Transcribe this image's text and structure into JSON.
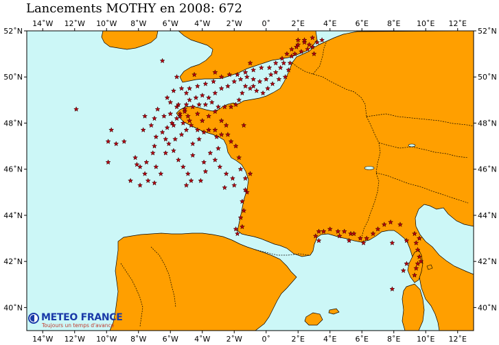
{
  "title": "Lancements MOTHY en 2008: 672",
  "colors": {
    "sea": "#ccf7f7",
    "land": "#ff9f00",
    "marker": "#b50010",
    "marker_edge": "#2a0000",
    "border": "#000000"
  },
  "map": {
    "lon_range": [
      -15,
      13
    ],
    "lat_range": [
      39,
      52
    ],
    "lon_ticks": [
      -14,
      -12,
      -10,
      -8,
      -6,
      -4,
      -2,
      0,
      2,
      4,
      6,
      8,
      10,
      12
    ],
    "lat_ticks": [
      52,
      50,
      48,
      46,
      44,
      42,
      40
    ],
    "lon_labels": [
      "14˚W",
      "12˚W",
      "10˚W",
      "8˚W",
      "6˚W",
      "4˚W",
      "2˚W",
      "0˚",
      "2˚E",
      "4˚E",
      "6˚E",
      "8˚E",
      "10˚E",
      "12˚E"
    ],
    "lat_labels": [
      "52˚N",
      "50˚N",
      "48˚N",
      "46˚N",
      "44˚N",
      "42˚N",
      "40˚N"
    ]
  },
  "logo": {
    "name": "METEO FRANCE",
    "slogan": "Toujours un temps d'avance",
    "icon": "meteo-france-logo-icon"
  },
  "launches": [
    [
      -11.9,
      48.6
    ],
    [
      -9.7,
      47.7
    ],
    [
      -9.4,
      47.1
    ],
    [
      -9.9,
      47.2
    ],
    [
      -9.9,
      46.3
    ],
    [
      -8.9,
      47.2
    ],
    [
      -8.2,
      46.5
    ],
    [
      -8.1,
      46.2
    ],
    [
      -7.9,
      46.1
    ],
    [
      -8.5,
      45.5
    ],
    [
      -7.6,
      45.8
    ],
    [
      -7.5,
      46.3
    ],
    [
      -7.1,
      46.7
    ],
    [
      -7.0,
      47.0
    ],
    [
      -7.4,
      45.5
    ],
    [
      -7.9,
      45.3
    ],
    [
      -7.0,
      45.4
    ],
    [
      -6.3,
      46.7
    ],
    [
      -5.8,
      46.8
    ],
    [
      -5.5,
      46.4
    ],
    [
      -5.2,
      46.1
    ],
    [
      -4.9,
      45.8
    ],
    [
      -4.7,
      45.5
    ],
    [
      -5.0,
      45.3
    ],
    [
      -4.1,
      45.5
    ],
    [
      -3.8,
      45.9
    ],
    [
      -3.9,
      46.3
    ],
    [
      -3.5,
      46.7
    ],
    [
      -3.0,
      46.9
    ],
    [
      -3.2,
      46.4
    ],
    [
      -2.9,
      46.1
    ],
    [
      -2.5,
      45.8
    ],
    [
      -2.1,
      45.6
    ],
    [
      -2.0,
      45.3
    ],
    [
      -2.6,
      45.2
    ],
    [
      -1.6,
      46.0
    ],
    [
      -1.7,
      46.5
    ],
    [
      -1.9,
      47.0
    ],
    [
      -2.2,
      47.2
    ],
    [
      -2.4,
      47.5
    ],
    [
      -2.8,
      47.5
    ],
    [
      -3.2,
      47.7
    ],
    [
      -3.6,
      47.7
    ],
    [
      -3.9,
      47.6
    ],
    [
      -4.3,
      47.7
    ],
    [
      -4.7,
      47.9
    ],
    [
      -4.8,
      48.1
    ],
    [
      -4.9,
      48.3
    ],
    [
      -5.1,
      48.5
    ],
    [
      -5.0,
      48.8
    ],
    [
      -4.6,
      48.7
    ],
    [
      -4.2,
      48.8
    ],
    [
      -3.8,
      48.8
    ],
    [
      -3.4,
      48.9
    ],
    [
      -3.0,
      48.7
    ],
    [
      -2.6,
      48.7
    ],
    [
      -2.2,
      48.7
    ],
    [
      -1.9,
      48.8
    ],
    [
      -1.7,
      49.0
    ],
    [
      -1.5,
      49.3
    ],
    [
      -1.3,
      49.6
    ],
    [
      -1.0,
      49.5
    ],
    [
      -0.6,
      49.4
    ],
    [
      -0.2,
      49.3
    ],
    [
      0.1,
      49.5
    ],
    [
      0.4,
      49.7
    ],
    [
      0.8,
      49.9
    ],
    [
      1.2,
      50.0
    ],
    [
      1.4,
      50.3
    ],
    [
      1.5,
      50.6
    ],
    [
      1.6,
      50.9
    ],
    [
      1.8,
      51.0
    ],
    [
      2.2,
      51.1
    ],
    [
      2.6,
      51.2
    ],
    [
      2.9,
      51.3
    ],
    [
      3.2,
      51.5
    ],
    [
      3.5,
      51.6
    ],
    [
      2.9,
      51.7
    ],
    [
      2.4,
      51.5
    ],
    [
      2.0,
      51.4
    ],
    [
      1.6,
      51.2
    ],
    [
      1.3,
      51.0
    ],
    [
      1.0,
      50.8
    ],
    [
      0.6,
      50.6
    ],
    [
      0.2,
      50.4
    ],
    [
      -0.3,
      50.4
    ],
    [
      -0.8,
      50.3
    ],
    [
      -1.3,
      50.2
    ],
    [
      -1.8,
      50.1
    ],
    [
      -2.3,
      50.1
    ],
    [
      -2.8,
      50.0
    ],
    [
      -3.3,
      49.8
    ],
    [
      -3.8,
      49.7
    ],
    [
      -4.3,
      49.6
    ],
    [
      -4.8,
      49.5
    ],
    [
      -5.3,
      49.5
    ],
    [
      -5.8,
      49.4
    ],
    [
      -6.2,
      49.1
    ],
    [
      -6.0,
      48.9
    ],
    [
      -5.6,
      48.7
    ],
    [
      -5.4,
      48.4
    ],
    [
      -5.6,
      48.2
    ],
    [
      -5.9,
      48.0
    ],
    [
      -6.2,
      47.8
    ],
    [
      -6.5,
      47.6
    ],
    [
      -6.3,
      47.3
    ],
    [
      -6.1,
      47.1
    ],
    [
      -5.7,
      47.3
    ],
    [
      -5.3,
      47.5
    ],
    [
      -5.0,
      47.7
    ],
    [
      -5.2,
      48.0
    ],
    [
      -5.4,
      48.3
    ],
    [
      -5.1,
      48.6
    ],
    [
      -4.8,
      49.0
    ],
    [
      -4.4,
      49.1
    ],
    [
      -4.0,
      49.2
    ],
    [
      -3.6,
      49.1
    ],
    [
      -3.2,
      49.3
    ],
    [
      -2.8,
      49.5
    ],
    [
      -2.4,
      49.6
    ],
    [
      -2.0,
      49.8
    ],
    [
      -1.6,
      49.9
    ],
    [
      -1.2,
      50.0
    ],
    [
      -0.8,
      49.9
    ],
    [
      -0.4,
      49.8
    ],
    [
      0.0,
      49.9
    ],
    [
      0.3,
      50.1
    ],
    [
      0.6,
      50.2
    ],
    [
      0.9,
      50.4
    ],
    [
      -6.5,
      50.7
    ],
    [
      -4.5,
      50.1
    ],
    [
      -5.6,
      50.0
    ],
    [
      -3.2,
      50.2
    ],
    [
      -1.0,
      50.6
    ],
    [
      2.4,
      51.6
    ],
    [
      3.0,
      51.0
    ],
    [
      1.9,
      51.3
    ],
    [
      -4.6,
      46.6
    ],
    [
      -6.6,
      45.8
    ],
    [
      -6.9,
      46.1
    ],
    [
      -1.3,
      45.6
    ],
    [
      -1.2,
      45.0
    ],
    [
      -1.5,
      44.6
    ],
    [
      -1.4,
      44.2
    ],
    [
      -1.6,
      43.9
    ],
    [
      -1.5,
      43.5
    ],
    [
      -1.9,
      43.4
    ],
    [
      -1.8,
      43.2
    ],
    [
      -1.3,
      45.1
    ],
    [
      -1.0,
      45.8
    ],
    [
      3.1,
      43.1
    ],
    [
      3.3,
      42.9
    ],
    [
      3.6,
      43.3
    ],
    [
      3.3,
      43.3
    ],
    [
      4.0,
      43.4
    ],
    [
      4.5,
      43.3
    ],
    [
      4.9,
      43.3
    ],
    [
      5.3,
      43.2
    ],
    [
      5.5,
      43.2
    ],
    [
      5.9,
      43.0
    ],
    [
      6.3,
      43.0
    ],
    [
      6.7,
      43.2
    ],
    [
      7.0,
      43.4
    ],
    [
      7.4,
      43.6
    ],
    [
      7.8,
      43.7
    ],
    [
      6.1,
      42.8
    ],
    [
      5.2,
      42.9
    ],
    [
      4.6,
      43.1
    ],
    [
      8.4,
      43.6
    ],
    [
      7.9,
      42.8
    ],
    [
      8.8,
      42.9
    ],
    [
      9.4,
      42.8
    ],
    [
      9.5,
      42.5
    ],
    [
      9.6,
      42.2
    ],
    [
      9.5,
      41.9
    ],
    [
      9.4,
      41.7
    ],
    [
      9.3,
      41.4
    ],
    [
      8.8,
      41.9
    ],
    [
      8.6,
      41.6
    ],
    [
      9.7,
      42.0
    ],
    [
      9.3,
      43.2
    ],
    [
      9.6,
      43.0
    ],
    [
      7.9,
      40.8
    ],
    [
      -5.0,
      49.3
    ],
    [
      -5.5,
      48.8
    ],
    [
      -6.0,
      48.4
    ],
    [
      -5.8,
      47.9
    ],
    [
      -6.4,
      48.3
    ],
    [
      -6.8,
      48.6
    ],
    [
      -7.0,
      48.2
    ],
    [
      -7.6,
      48.3
    ],
    [
      -7.2,
      47.9
    ],
    [
      -7.7,
      47.7
    ],
    [
      -6.9,
      47.4
    ],
    [
      -4.3,
      48.4
    ],
    [
      -4.0,
      48.1
    ],
    [
      -3.6,
      48.3
    ],
    [
      -3.2,
      48.5
    ],
    [
      -2.8,
      48.1
    ],
    [
      -2.5,
      47.9
    ],
    [
      -3.1,
      47.4
    ],
    [
      -4.2,
      47.3
    ],
    [
      -4.6,
      47.1
    ],
    [
      -1.4,
      47.9
    ],
    [
      -0.8,
      49.6
    ],
    [
      1.1,
      50.6
    ],
    [
      2.0,
      51.6
    ],
    [
      2.7,
      51.4
    ]
  ]
}
